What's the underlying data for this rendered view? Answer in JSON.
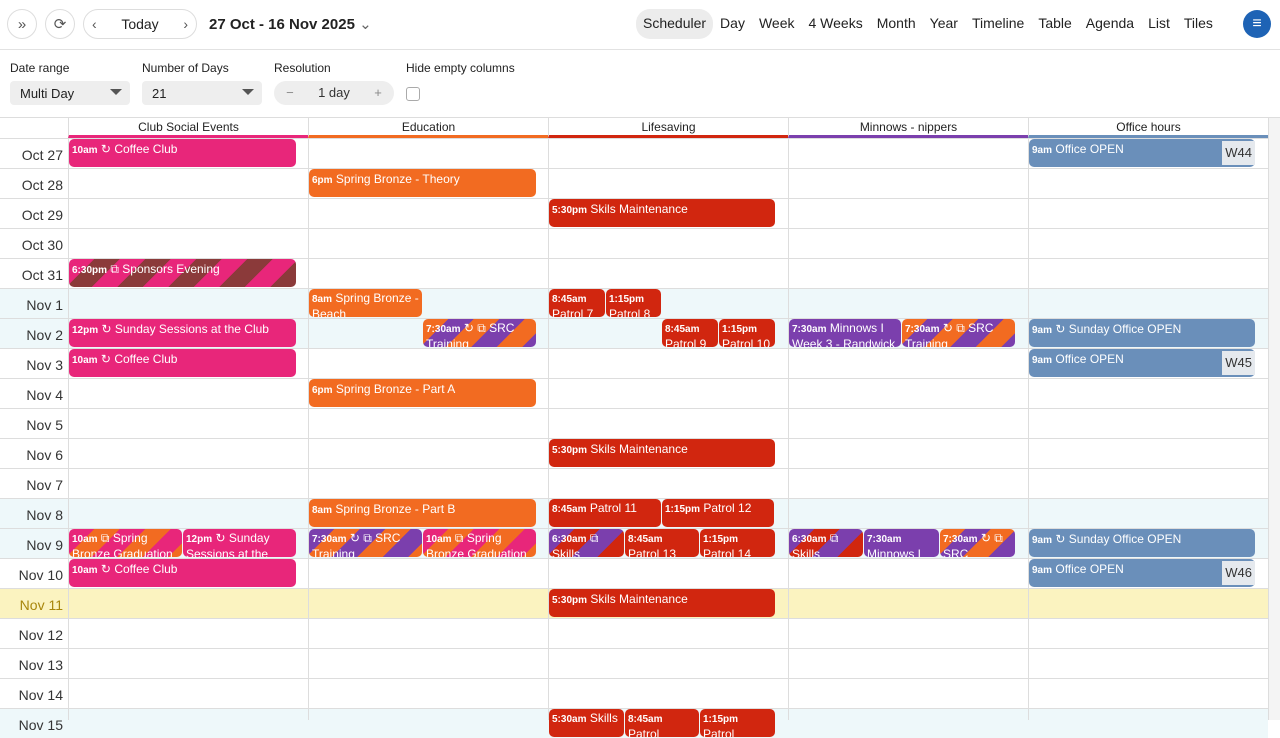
{
  "toolbar": {
    "expand_icon": "double-chevron-right",
    "refresh_icon": "refresh",
    "today": "Today",
    "title": "27 Oct - 16 Nov 2025",
    "views": [
      "Scheduler",
      "Day",
      "Week",
      "4 Weeks",
      "Month",
      "Year",
      "Timeline",
      "Table",
      "Agenda",
      "List",
      "Tiles"
    ],
    "active_view": "Scheduler"
  },
  "options": {
    "date_range_label": "Date range",
    "date_range": "Multi Day",
    "days_label": "Number of Days",
    "days": "21",
    "resolution_label": "Resolution",
    "resolution": "1 day",
    "hide_empty_label": "Hide empty columns",
    "hide_empty": false
  },
  "resources": [
    {
      "name": "Club Social Events",
      "color": "#e8267a"
    },
    {
      "name": "Education",
      "color": "#f26b21"
    },
    {
      "name": "Lifesaving",
      "color": "#d1260f"
    },
    {
      "name": "Minnows - nippers",
      "color": "#7b3fad"
    },
    {
      "name": "Office hours",
      "color": "#6a8fba"
    }
  ],
  "days": [
    "Oct 27",
    "Oct 28",
    "Oct 29",
    "Oct 30",
    "Oct 31",
    "Nov 1",
    "Nov 2",
    "Nov 3",
    "Nov 4",
    "Nov 5",
    "Nov 6",
    "Nov 7",
    "Nov 8",
    "Nov 9",
    "Nov 10",
    "Nov 11",
    "Nov 12",
    "Nov 13",
    "Nov 14",
    "Nov 15"
  ],
  "weekend_days": [
    "Nov 1",
    "Nov 2",
    "Nov 8",
    "Nov 9",
    "Nov 15"
  ],
  "today": "Nov 11",
  "colors": {
    "pink": "#e8267a",
    "orange": "#f26b21",
    "red": "#d1260f",
    "purple": "#7b3fad",
    "blue": "#6a8fba",
    "maroon": "#8b3a3a",
    "weekend": "#eef8fa",
    "today": "#fbf3c0"
  },
  "events": [
    {
      "r": 0,
      "day": "Oct 27",
      "time": "10am",
      "icon": "↻",
      "title": "Coffee Club",
      "c": [
        "pink"
      ]
    },
    {
      "r": 0,
      "day": "Oct 31",
      "time": "6:30pm",
      "icon": "⧉",
      "title": "Sponsors Evening",
      "c": [
        "pink",
        "maroon"
      ]
    },
    {
      "r": 0,
      "day": "Nov 2",
      "time": "12pm",
      "icon": "↻",
      "title": "Sunday Sessions at the Club",
      "c": [
        "pink"
      ]
    },
    {
      "r": 0,
      "day": "Nov 3",
      "time": "10am",
      "icon": "↻",
      "title": "Coffee Club",
      "c": [
        "pink"
      ]
    },
    {
      "r": 0,
      "day": "Nov 9",
      "time": "10am",
      "icon": "⧉",
      "title": "Spring Bronze Graduation",
      "c": [
        "pink",
        "orange"
      ]
    },
    {
      "r": 0,
      "day": "Nov 9",
      "time": "12pm",
      "icon": "↻",
      "title": "Sunday Sessions at the",
      "c": [
        "pink"
      ]
    },
    {
      "r": 0,
      "day": "Nov 10",
      "time": "10am",
      "icon": "↻",
      "title": "Coffee Club",
      "c": [
        "pink"
      ]
    },
    {
      "r": 1,
      "day": "Oct 28",
      "time": "6pm",
      "icon": "",
      "title": "Spring Bronze - Theory",
      "c": [
        "orange"
      ]
    },
    {
      "r": 1,
      "day": "Nov 1",
      "time": "8am",
      "icon": "",
      "title": "Spring Bronze - Beach",
      "c": [
        "orange"
      ]
    },
    {
      "r": 1,
      "day": "Nov 2",
      "time": "7:30am",
      "icon": "↻ ⧉",
      "title": "SRC Training",
      "c": [
        "orange",
        "purple"
      ]
    },
    {
      "r": 1,
      "day": "Nov 4",
      "time": "6pm",
      "icon": "",
      "title": "Spring Bronze - Part A",
      "c": [
        "orange"
      ]
    },
    {
      "r": 1,
      "day": "Nov 8",
      "time": "8am",
      "icon": "",
      "title": "Spring Bronze - Part B",
      "c": [
        "orange"
      ]
    },
    {
      "r": 1,
      "day": "Nov 9",
      "time": "7:30am",
      "icon": "↻ ⧉",
      "title": "SRC Training",
      "c": [
        "purple",
        "orange"
      ]
    },
    {
      "r": 1,
      "day": "Nov 9",
      "time": "10am",
      "icon": "⧉",
      "title": "Spring Bronze Graduation",
      "c": [
        "pink",
        "orange"
      ]
    },
    {
      "r": 2,
      "day": "Oct 29",
      "time": "5:30pm",
      "icon": "",
      "title": "Skils Maintenance",
      "c": [
        "red"
      ]
    },
    {
      "r": 2,
      "day": "Nov 1",
      "time": "8:45am",
      "icon": "",
      "title": "Patrol 7",
      "c": [
        "red"
      ]
    },
    {
      "r": 2,
      "day": "Nov 1",
      "time": "1:15pm",
      "icon": "",
      "title": "Patrol 8",
      "c": [
        "red"
      ]
    },
    {
      "r": 2,
      "day": "Nov 2",
      "time": "8:45am",
      "icon": "",
      "title": "Patrol 9",
      "c": [
        "red"
      ]
    },
    {
      "r": 2,
      "day": "Nov 2",
      "time": "1:15pm",
      "icon": "",
      "title": "Patrol 10",
      "c": [
        "red"
      ]
    },
    {
      "r": 2,
      "day": "Nov 6",
      "time": "5:30pm",
      "icon": "",
      "title": "Skils Maintenance",
      "c": [
        "red"
      ]
    },
    {
      "r": 2,
      "day": "Nov 8",
      "time": "8:45am",
      "icon": "",
      "title": "Patrol 11",
      "c": [
        "red"
      ]
    },
    {
      "r": 2,
      "day": "Nov 8",
      "time": "1:15pm",
      "icon": "",
      "title": "Patrol 12",
      "c": [
        "red"
      ]
    },
    {
      "r": 2,
      "day": "Nov 9",
      "time": "6:30am",
      "icon": "⧉",
      "title": "Skills",
      "c": [
        "purple",
        "red"
      ]
    },
    {
      "r": 2,
      "day": "Nov 9",
      "time": "8:45am",
      "icon": "",
      "title": "Patrol 13",
      "c": [
        "red"
      ]
    },
    {
      "r": 2,
      "day": "Nov 9",
      "time": "1:15pm",
      "icon": "",
      "title": "Patrol 14",
      "c": [
        "red"
      ]
    },
    {
      "r": 2,
      "day": "Nov 11",
      "time": "5:30pm",
      "icon": "",
      "title": "Skils Maintenance",
      "c": [
        "red"
      ]
    },
    {
      "r": 2,
      "day": "Nov 15",
      "time": "5:30am",
      "icon": "",
      "title": "Skills",
      "c": [
        "red"
      ]
    },
    {
      "r": 2,
      "day": "Nov 15",
      "time": "8:45am",
      "icon": "",
      "title": "Patrol",
      "c": [
        "red"
      ]
    },
    {
      "r": 2,
      "day": "Nov 15",
      "time": "1:15pm",
      "icon": "",
      "title": "Patrol",
      "c": [
        "red"
      ]
    },
    {
      "r": 3,
      "day": "Nov 2",
      "time": "7:30am",
      "icon": "",
      "title": "Minnows I Week 3 - Randwick",
      "c": [
        "purple"
      ]
    },
    {
      "r": 3,
      "day": "Nov 2",
      "time": "7:30am",
      "icon": "↻ ⧉",
      "title": "SRC Training",
      "c": [
        "orange",
        "purple"
      ]
    },
    {
      "r": 3,
      "day": "Nov 9",
      "time": "6:30am",
      "icon": "⧉",
      "title": "Skills",
      "c": [
        "purple",
        "red"
      ]
    },
    {
      "r": 3,
      "day": "Nov 9",
      "time": "7:30am",
      "icon": "",
      "title": "Minnows I Week",
      "c": [
        "purple"
      ]
    },
    {
      "r": 3,
      "day": "Nov 9",
      "time": "7:30am",
      "icon": "↻ ⧉",
      "title": "SRC",
      "c": [
        "orange",
        "purple"
      ]
    },
    {
      "r": 4,
      "day": "Oct 27",
      "time": "9am",
      "icon": "",
      "title": "Office OPEN",
      "c": [
        "blue"
      ],
      "badge": "W44"
    },
    {
      "r": 4,
      "day": "Nov 2",
      "time": "9am",
      "icon": "↻",
      "title": "Sunday Office OPEN",
      "c": [
        "blue"
      ]
    },
    {
      "r": 4,
      "day": "Nov 3",
      "time": "9am",
      "icon": "",
      "title": "Office OPEN",
      "c": [
        "blue"
      ],
      "badge": "W45"
    },
    {
      "r": 4,
      "day": "Nov 9",
      "time": "9am",
      "icon": "↻",
      "title": "Sunday Office OPEN",
      "c": [
        "blue"
      ]
    },
    {
      "r": 4,
      "day": "Nov 10",
      "time": "9am",
      "icon": "",
      "title": "Office OPEN",
      "c": [
        "blue"
      ],
      "badge": "W46"
    }
  ]
}
